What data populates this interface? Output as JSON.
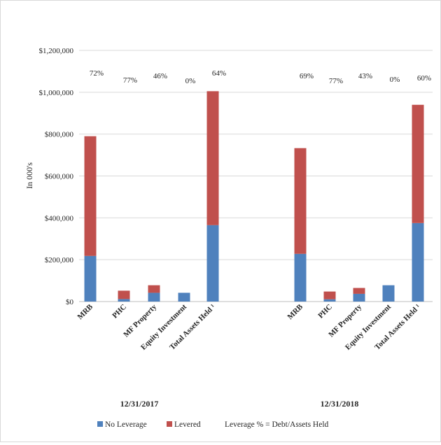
{
  "chart_data": {
    "type": "bar",
    "stacked": true,
    "ylabel": "In 000's",
    "yticks": [
      "$0",
      "$200,000",
      "$400,000",
      "$600,000",
      "$800,000",
      "$1,000,000",
      "$1,200,000"
    ],
    "ylim": [
      0,
      1200000
    ],
    "grid": true,
    "legend_position": "bottom",
    "categories": [
      "MRB",
      "PHC",
      "MF Property",
      "Equity Investment",
      "Total Assets Held ¹"
    ],
    "groups": [
      {
        "label": "12/31/2017",
        "no_leverage": [
          218000,
          12000,
          42000,
          42000,
          365000
        ],
        "levered": [
          572000,
          40000,
          36000,
          0,
          640000
        ],
        "leverage_pct": [
          "72%",
          "77%",
          "46%",
          "0%",
          "64%"
        ]
      },
      {
        "label": "12/31/2018",
        "no_leverage": [
          228000,
          11000,
          37000,
          78000,
          375000
        ],
        "levered": [
          505000,
          37000,
          28000,
          0,
          565000
        ],
        "leverage_pct": [
          "69%",
          "77%",
          "43%",
          "0%",
          "60%"
        ]
      }
    ],
    "series": [
      {
        "name": "No Leverage",
        "color": "#4f81bd"
      },
      {
        "name": "Levered",
        "color": "#c0504d"
      }
    ],
    "legend_note": "Leverage % = Debt/Assets Held"
  }
}
